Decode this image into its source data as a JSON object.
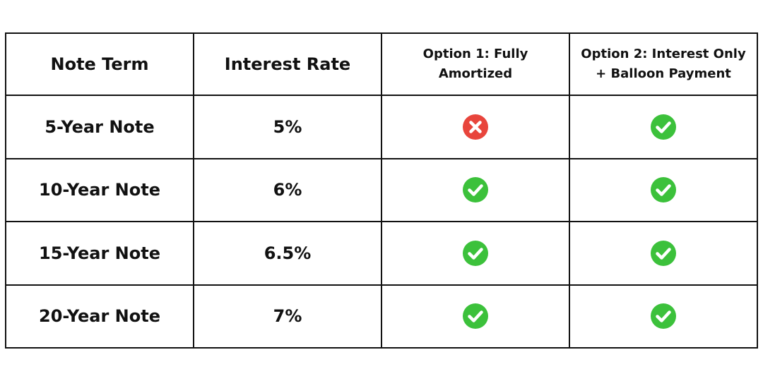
{
  "table": {
    "headers": [
      {
        "lines": [
          "Note Term"
        ]
      },
      {
        "lines": [
          "Interest Rate"
        ]
      },
      {
        "lines": [
          "Option 1: Fully",
          "Amortized"
        ]
      },
      {
        "lines": [
          "Option 2: Interest Only",
          "+ Balloon Payment"
        ]
      }
    ],
    "rows": [
      {
        "term": "5-Year Note",
        "rate": "5%",
        "option1": "no",
        "option2": "yes"
      },
      {
        "term": "10-Year Note",
        "rate": "6%",
        "option1": "yes",
        "option2": "yes"
      },
      {
        "term": "15-Year Note",
        "rate": "6.5%",
        "option1": "yes",
        "option2": "yes"
      },
      {
        "term": "20-Year Note",
        "rate": "7%",
        "option1": "yes",
        "option2": "yes"
      }
    ]
  },
  "colors": {
    "yes": "#3cc13b",
    "no": "#e8453c"
  },
  "icons": {
    "yes": "check-circle-icon",
    "no": "x-circle-icon"
  }
}
